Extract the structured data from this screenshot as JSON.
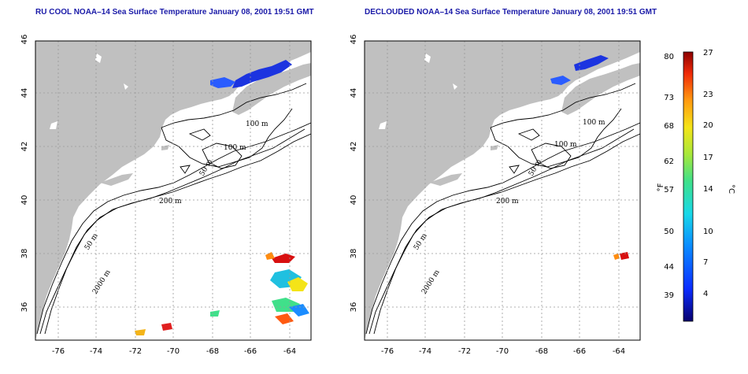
{
  "titles": {
    "left": "RU COOL NOAA–14 Sea Surface Temperature January 08, 2001 19:51 GMT",
    "right": "DECLOUDED NOAA–14 Sea Surface Temperature January 08, 2001 19:51 GMT"
  },
  "axes": {
    "x_ticks": [
      "-76",
      "-74",
      "-72",
      "-70",
      "-68",
      "-66",
      "-64"
    ],
    "y_ticks": [
      "36",
      "38",
      "40",
      "42",
      "44",
      "46"
    ]
  },
  "contours": {
    "c100a": "100 m",
    "c100b": "100 m",
    "c50a": "50 m",
    "c200": "200 m",
    "c50b": "50 m",
    "c2000": "2000 m"
  },
  "colorbar": {
    "unit_f": "°F",
    "unit_c": "°C",
    "f_ticks": [
      "80",
      "73",
      "68",
      "62",
      "57",
      "50",
      "44",
      "39"
    ],
    "c_ticks": [
      "27",
      "23",
      "20",
      "17",
      "14",
      "10",
      "7",
      "4"
    ]
  },
  "colors": {
    "land": "#c0c0c0",
    "ocean": "#ffffff",
    "title": "#1a1aa8",
    "grid": "#999999"
  }
}
